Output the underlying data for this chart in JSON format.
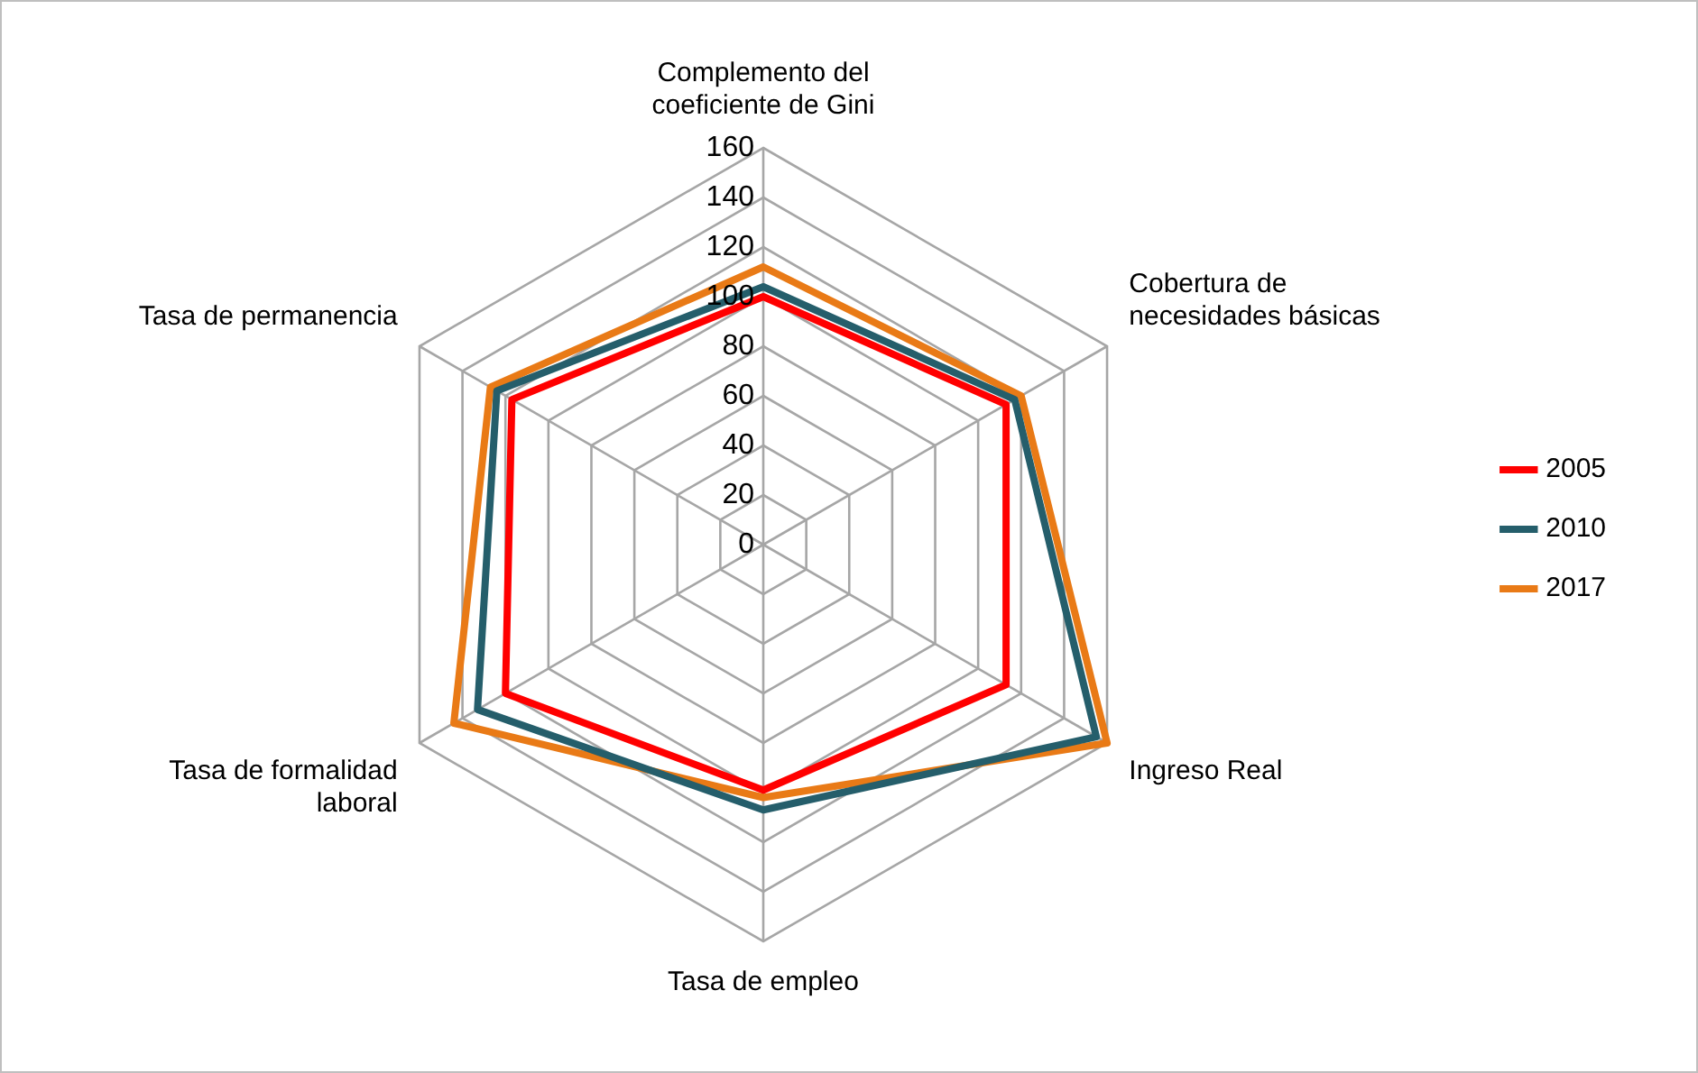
{
  "chart_data": {
    "type": "radar",
    "categories": [
      "Complemento del coeficiente de Gini",
      "Cobertura de necesidades básicas",
      "Ingreso Real",
      "Tasa de empleo",
      "Tasa de formalidad laboral",
      "Tasa de permanencia"
    ],
    "series": [
      {
        "name": "2005",
        "color": "#ff0000",
        "values": [
          100,
          113,
          113,
          99,
          120,
          117
        ]
      },
      {
        "name": "2010",
        "color": "#255e6b",
        "values": [
          104,
          117,
          155,
          107,
          133,
          124
        ]
      },
      {
        "name": "2017",
        "color": "#e97a16",
        "values": [
          112,
          120,
          160,
          102,
          144,
          127
        ]
      }
    ],
    "ylim": [
      0,
      160
    ],
    "yticks": [
      0,
      20,
      40,
      60,
      80,
      100,
      120,
      140,
      160
    ],
    "grid": true,
    "legend": "right",
    "marker": "none",
    "line_style": "solid"
  }
}
